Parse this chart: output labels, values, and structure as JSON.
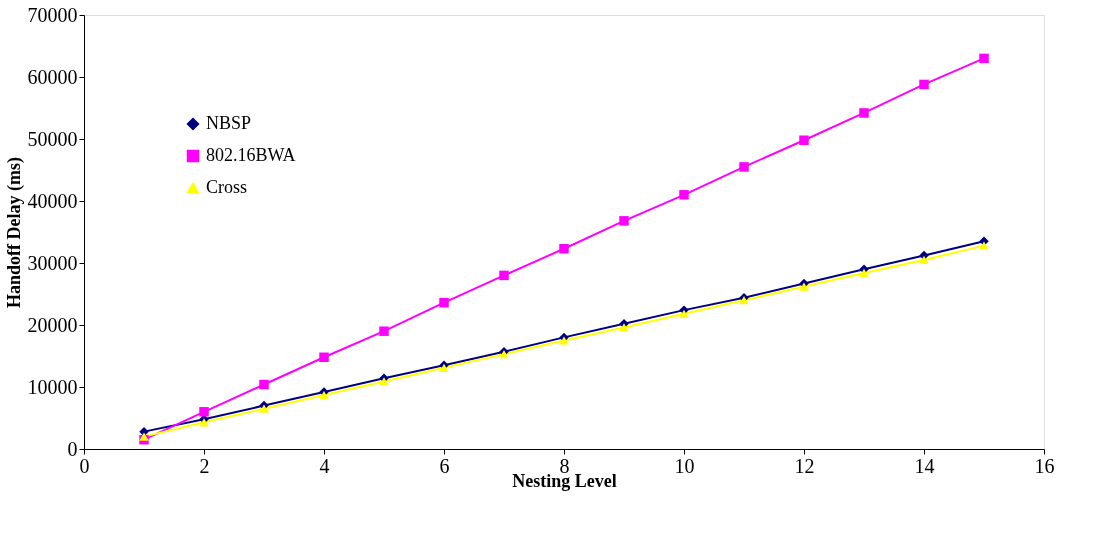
{
  "chart_data": {
    "type": "line",
    "xlabel": "Nesting Level",
    "ylabel": "Handoff Delay (ms)",
    "x": [
      1,
      2,
      3,
      4,
      5,
      6,
      7,
      8,
      9,
      10,
      11,
      12,
      13,
      14,
      15
    ],
    "series": [
      {
        "name": "NBSP",
        "color": "#000080",
        "marker": "diamond",
        "values": [
          2800,
          4800,
          7000,
          9200,
          11400,
          13500,
          15700,
          18000,
          20200,
          22400,
          24400,
          26700,
          29000,
          31200,
          33500
        ]
      },
      {
        "name": "802.16BWA",
        "color": "#ff00ff",
        "marker": "square",
        "values": [
          1500,
          6000,
          10400,
          14800,
          19000,
          23600,
          28000,
          32300,
          36800,
          41000,
          45500,
          49800,
          54200,
          58800,
          63000
        ]
      },
      {
        "name": "Cross",
        "color": "#ffff00",
        "marker": "triangle",
        "values": [
          2000,
          4300,
          6500,
          8700,
          10900,
          13100,
          15300,
          17500,
          19600,
          21800,
          24000,
          26200,
          28400,
          30500,
          32800
        ]
      }
    ],
    "xlim": [
      0,
      16
    ],
    "xticks": [
      0,
      2,
      4,
      6,
      8,
      10,
      12,
      14,
      16
    ],
    "ylim": [
      0,
      70000
    ],
    "yticks": [
      0,
      10000,
      20000,
      30000,
      40000,
      50000,
      60000,
      70000
    ],
    "grid": false,
    "legend": "top left",
    "line_style": "solid"
  }
}
